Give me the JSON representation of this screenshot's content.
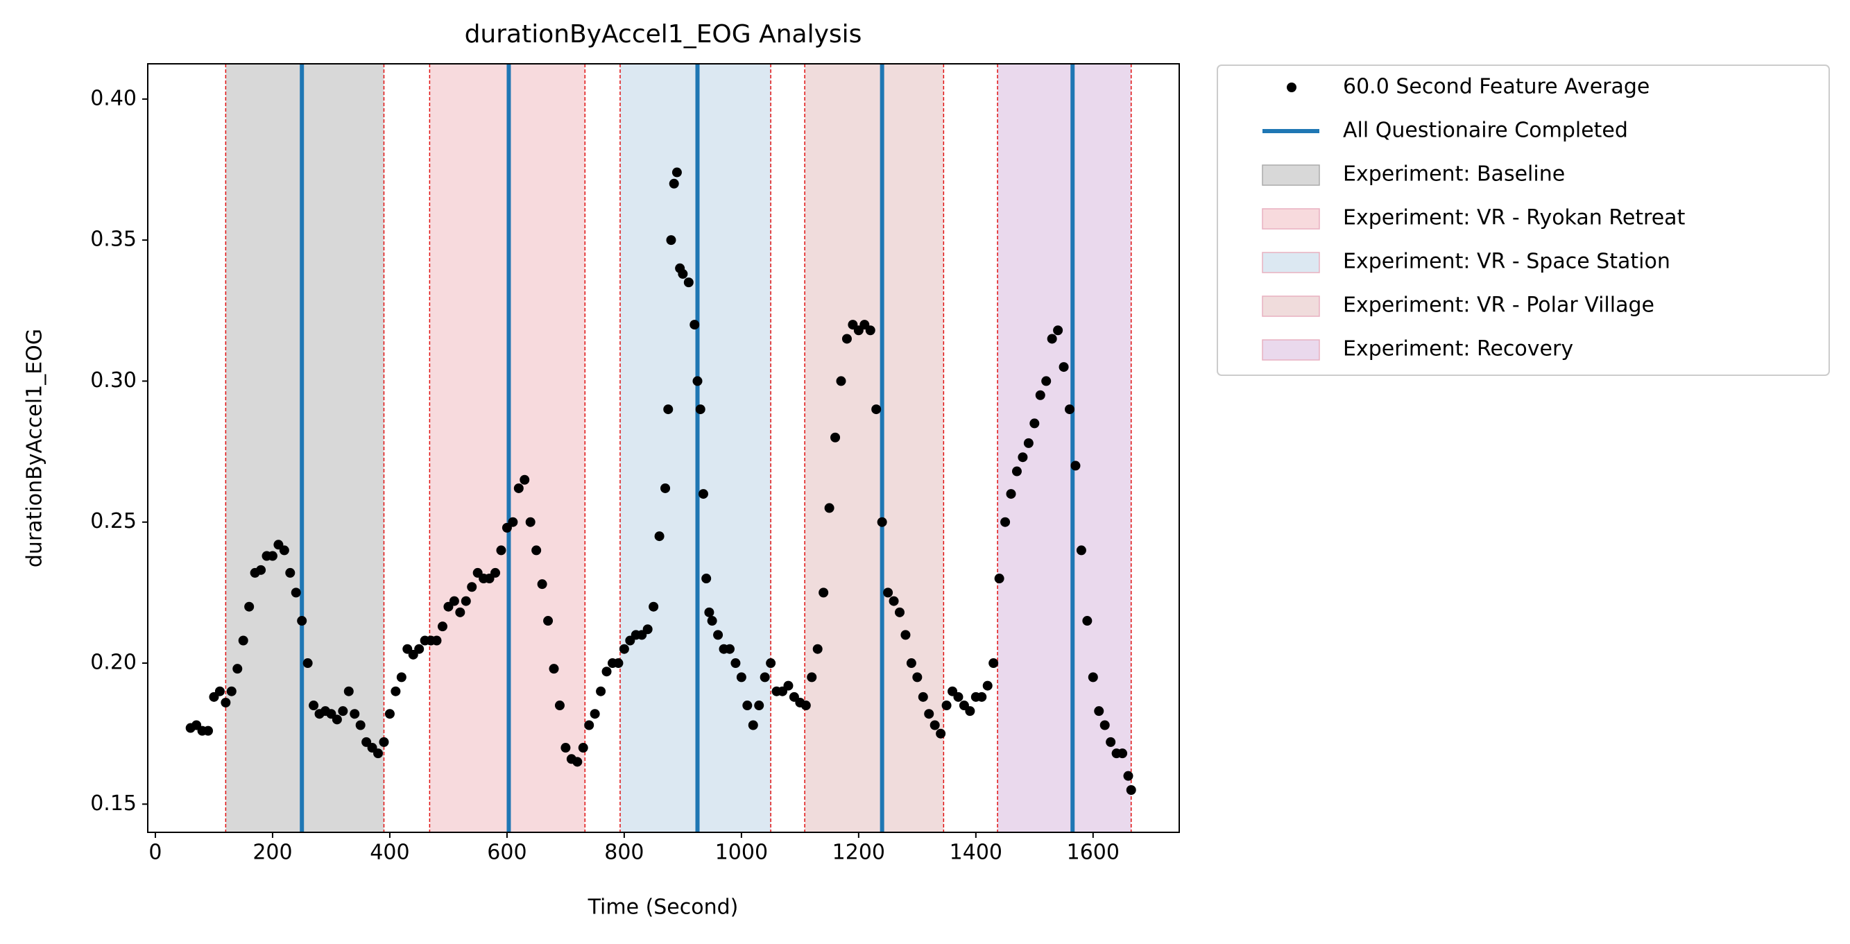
{
  "chart_data": {
    "type": "scatter",
    "title": "durationByAccel1_EOG Analysis",
    "x_label": "Time (Second)",
    "y_label": "durationByAccel1_EOG",
    "xlim": [
      -13,
      1747
    ],
    "ylim": [
      0.14,
      0.4125
    ],
    "xticks": [
      0,
      200,
      400,
      600,
      800,
      1000,
      1200,
      1400,
      1600
    ],
    "yticks": [
      {
        "value": 0.15,
        "label": "0.15"
      },
      {
        "value": 0.2,
        "label": "0.20"
      },
      {
        "value": 0.25,
        "label": "0.25"
      },
      {
        "value": 0.3,
        "label": "0.30"
      },
      {
        "value": 0.35,
        "label": "0.35"
      },
      {
        "value": 0.4,
        "label": "0.40"
      }
    ],
    "legend": "outside-upper-right",
    "series": [
      {
        "name": "60.0 Second Feature Average",
        "color": "#000000",
        "x": [
          60,
          70,
          80,
          90,
          100,
          110,
          120,
          130,
          140,
          150,
          160,
          170,
          180,
          190,
          200,
          210,
          220,
          230,
          240,
          250,
          260,
          270,
          280,
          290,
          300,
          310,
          320,
          330,
          340,
          350,
          360,
          370,
          380,
          390,
          400,
          410,
          420,
          430,
          440,
          450,
          460,
          470,
          480,
          490,
          500,
          510,
          520,
          530,
          540,
          550,
          560,
          570,
          580,
          590,
          600,
          610,
          620,
          630,
          640,
          650,
          660,
          670,
          680,
          690,
          700,
          710,
          720,
          730,
          740,
          750,
          760,
          770,
          780,
          790,
          800,
          810,
          820,
          830,
          840,
          850,
          860,
          870,
          875,
          880,
          885,
          890,
          895,
          900,
          910,
          920,
          925,
          930,
          935,
          940,
          945,
          950,
          960,
          970,
          980,
          990,
          1000,
          1010,
          1020,
          1030,
          1040,
          1050,
          1060,
          1070,
          1080,
          1090,
          1100,
          1110,
          1120,
          1130,
          1140,
          1150,
          1160,
          1170,
          1180,
          1190,
          1200,
          1210,
          1220,
          1230,
          1240,
          1250,
          1260,
          1270,
          1280,
          1290,
          1300,
          1310,
          1320,
          1330,
          1340,
          1350,
          1360,
          1370,
          1380,
          1390,
          1400,
          1410,
          1420,
          1430,
          1440,
          1450,
          1460,
          1470,
          1480,
          1490,
          1500,
          1510,
          1520,
          1530,
          1540,
          1550,
          1560,
          1570,
          1580,
          1590,
          1600,
          1610,
          1620,
          1630,
          1640,
          1650,
          1660,
          1665
        ],
        "values": [
          0.177,
          0.178,
          0.176,
          0.176,
          0.188,
          0.19,
          0.186,
          0.19,
          0.198,
          0.208,
          0.22,
          0.232,
          0.233,
          0.238,
          0.238,
          0.242,
          0.24,
          0.232,
          0.225,
          0.215,
          0.2,
          0.185,
          0.182,
          0.183,
          0.182,
          0.18,
          0.183,
          0.19,
          0.182,
          0.178,
          0.172,
          0.17,
          0.168,
          0.172,
          0.182,
          0.19,
          0.195,
          0.205,
          0.203,
          0.205,
          0.208,
          0.208,
          0.208,
          0.213,
          0.22,
          0.222,
          0.218,
          0.222,
          0.227,
          0.232,
          0.23,
          0.23,
          0.232,
          0.24,
          0.248,
          0.25,
          0.262,
          0.265,
          0.25,
          0.24,
          0.228,
          0.215,
          0.198,
          0.185,
          0.17,
          0.166,
          0.165,
          0.17,
          0.178,
          0.182,
          0.19,
          0.197,
          0.2,
          0.2,
          0.205,
          0.208,
          0.21,
          0.21,
          0.212,
          0.22,
          0.245,
          0.262,
          0.29,
          0.35,
          0.37,
          0.374,
          0.34,
          0.338,
          0.335,
          0.32,
          0.3,
          0.29,
          0.26,
          0.23,
          0.218,
          0.215,
          0.21,
          0.205,
          0.205,
          0.2,
          0.195,
          0.185,
          0.178,
          0.185,
          0.195,
          0.2,
          0.19,
          0.19,
          0.192,
          0.188,
          0.186,
          0.185,
          0.195,
          0.205,
          0.225,
          0.255,
          0.28,
          0.3,
          0.315,
          0.32,
          0.318,
          0.32,
          0.318,
          0.29,
          0.25,
          0.225,
          0.222,
          0.218,
          0.21,
          0.2,
          0.195,
          0.188,
          0.182,
          0.178,
          0.175,
          0.185,
          0.19,
          0.188,
          0.185,
          0.183,
          0.188,
          0.188,
          0.192,
          0.2,
          0.23,
          0.25,
          0.26,
          0.268,
          0.273,
          0.278,
          0.285,
          0.295,
          0.3,
          0.315,
          0.318,
          0.305,
          0.29,
          0.27,
          0.24,
          0.215,
          0.195,
          0.183,
          0.178,
          0.172,
          0.168,
          0.168,
          0.16,
          0.155
        ]
      }
    ],
    "vlines": {
      "name": "All Questionaire Completed",
      "color": "#1f77b4",
      "x": [
        250,
        603,
        925,
        1240,
        1565
      ]
    },
    "regions": [
      {
        "name": "Experiment: Baseline",
        "color": "#d8d8d8",
        "start": 120,
        "end": 390
      },
      {
        "name": "Experiment: VR - Ryokan Retreat",
        "color": "#f7dadd",
        "start": 468,
        "end": 733
      },
      {
        "name": "Experiment: VR - Space Station",
        "color": "#dce8f2",
        "start": 793,
        "end": 1050
      },
      {
        "name": "Experiment: VR - Polar Village",
        "color": "#f0dcdc",
        "start": 1108,
        "end": 1345
      },
      {
        "name": "Experiment: Recovery",
        "color": "#ead9ed",
        "start": 1437,
        "end": 1665
      }
    ]
  }
}
